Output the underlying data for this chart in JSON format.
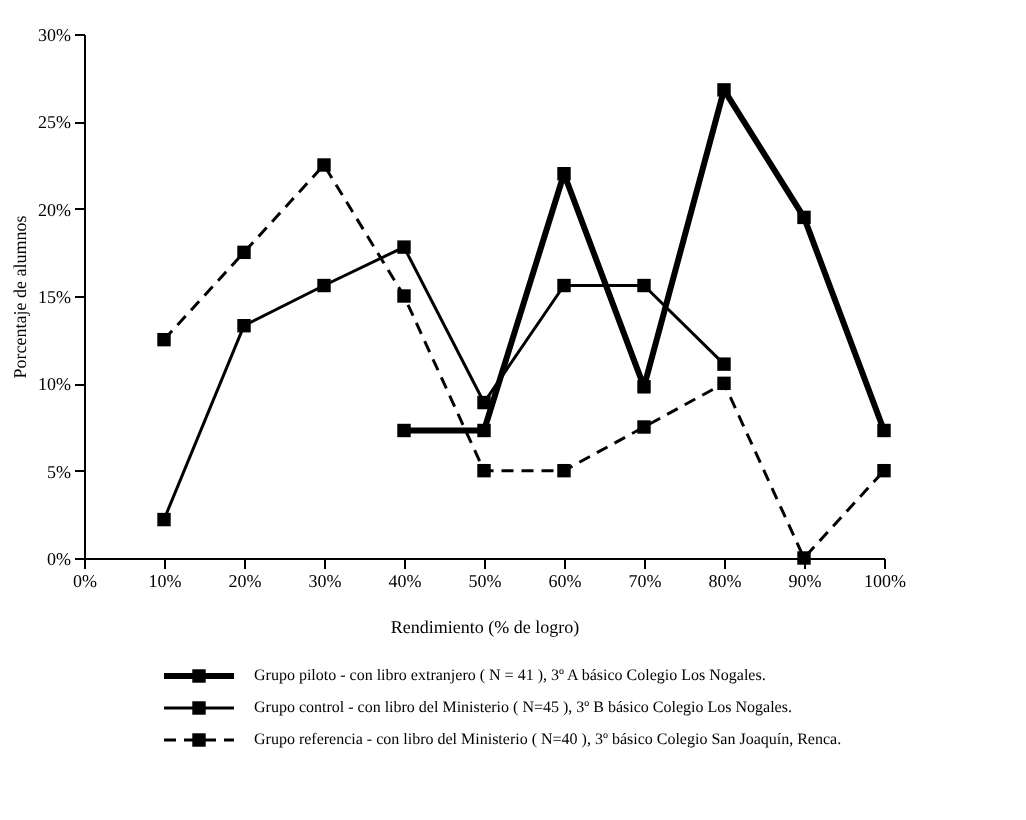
{
  "chart_data": {
    "type": "line",
    "xlabel": "Rendimiento (% de logro)",
    "ylabel": "Porcentaje de alumnos",
    "x": [
      10,
      20,
      30,
      40,
      50,
      60,
      70,
      80,
      90,
      100
    ],
    "series": [
      {
        "name": "Grupo piloto - con libro extranjero ( N = 41 ), 3º A básico Colegio Los Nogales.",
        "color": "#000000",
        "line_style": "solid",
        "values": [
          null,
          null,
          null,
          7.3,
          7.3,
          22,
          9.8,
          26.8,
          19.5,
          7.3
        ]
      },
      {
        "name": "Grupo control - con libro del Ministerio ( N=45 ), 3º B básico Colegio Los Nogales.",
        "color": "#000000",
        "line_style": "solid",
        "values": [
          2.2,
          13.3,
          15.6,
          17.8,
          8.9,
          15.6,
          15.6,
          11.1,
          null,
          null
        ]
      },
      {
        "name": "Grupo referencia - con libro del Ministerio ( N=40 ), 3º básico Colegio San Joaquín, Renca.",
        "color": "#000000",
        "line_style": "dashed",
        "values": [
          12.5,
          17.5,
          22.5,
          15,
          5,
          5,
          7.5,
          10,
          0,
          5
        ]
      }
    ],
    "xlim": [
      0,
      100
    ],
    "ylim": [
      0,
      30
    ],
    "xticks": [
      {
        "value": 0,
        "label": "0%"
      },
      {
        "value": 10,
        "label": "10%"
      },
      {
        "value": 20,
        "label": "20%"
      },
      {
        "value": 30,
        "label": "30%"
      },
      {
        "value": 40,
        "label": "40%"
      },
      {
        "value": 50,
        "label": "50%"
      },
      {
        "value": 60,
        "label": "60%"
      },
      {
        "value": 70,
        "label": "70%"
      },
      {
        "value": 80,
        "label": "80%"
      },
      {
        "value": 90,
        "label": "90%"
      },
      {
        "value": 100,
        "label": "100%"
      }
    ],
    "yticks": [
      {
        "value": 0,
        "label": "0%"
      },
      {
        "value": 5,
        "label": "5%"
      },
      {
        "value": 10,
        "label": "10%"
      },
      {
        "value": 15,
        "label": "15%"
      },
      {
        "value": 20,
        "label": "20%"
      },
      {
        "value": 25,
        "label": "25%"
      },
      {
        "value": 30,
        "label": "30%"
      }
    ],
    "marker": "square",
    "grid": false,
    "legend": "bottom"
  }
}
